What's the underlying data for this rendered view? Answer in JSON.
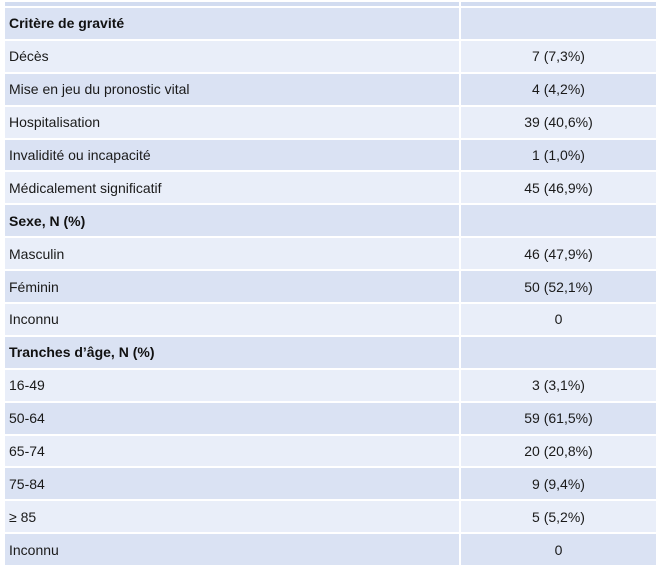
{
  "table": {
    "columns": {
      "label_col": "",
      "value_col": ""
    },
    "colors": {
      "row_dark": "#dae2f3",
      "row_light": "#e9eef9",
      "top_sliver": "#d2dcf0",
      "gridline": "#ffffff",
      "text": "#1a1a1a"
    },
    "rows": [
      {
        "label": "Critère de gravité",
        "value": "",
        "header": true
      },
      {
        "label": "Décès",
        "value": "7 (7,3%)",
        "header": false
      },
      {
        "label": "Mise en jeu du pronostic vital",
        "value": "4 (4,2%)",
        "header": false
      },
      {
        "label": "Hospitalisation",
        "value": "39 (40,6%)",
        "header": false
      },
      {
        "label": "Invalidité ou incapacité",
        "value": "1 (1,0%)",
        "header": false
      },
      {
        "label": "Médicalement significatif",
        "value": "45 (46,9%)",
        "header": false
      },
      {
        "label": "Sexe, N (%)",
        "value": "",
        "header": true
      },
      {
        "label": "Masculin",
        "value": "46 (47,9%)",
        "header": false
      },
      {
        "label": "Féminin",
        "value": "50 (52,1%)",
        "header": false
      },
      {
        "label": "Inconnu",
        "value": "0",
        "header": false
      },
      {
        "label": "Tranches d’âge, N (%)",
        "value": "",
        "header": true
      },
      {
        "label": "16-49",
        "value": "3 (3,1%)",
        "header": false
      },
      {
        "label": "50-64",
        "value": "59 (61,5%)",
        "header": false
      },
      {
        "label": "65-74",
        "value": "20 (20,8%)",
        "header": false
      },
      {
        "label": "75-84",
        "value": "9 (9,4%)",
        "header": false
      },
      {
        "label": "≥ 85",
        "value": "5 (5,2%)",
        "header": false
      },
      {
        "label": "Inconnu",
        "value": "0",
        "header": false
      }
    ]
  }
}
